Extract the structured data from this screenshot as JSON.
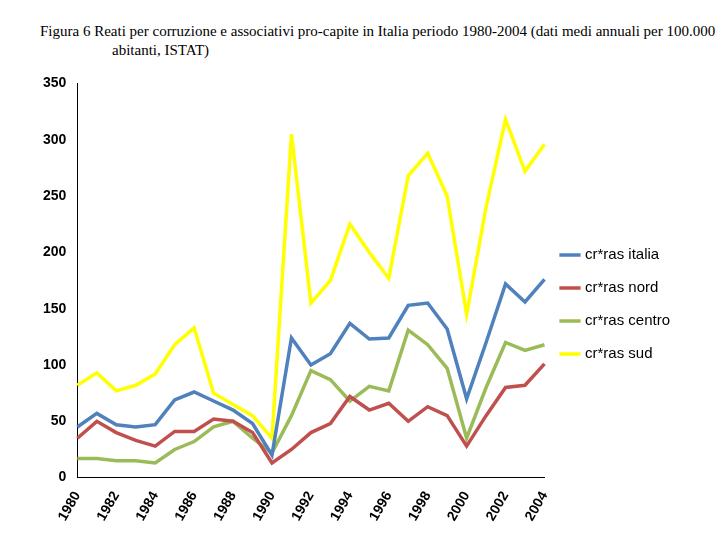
{
  "chart_data": {
    "type": "line",
    "title": "Figura 6  Reati per corruzione e associativi pro-capite in Italia periodo 1980-2004  (dati medi annuali  per 100.000 abitanti, ISTAT)",
    "categories": [
      "1980",
      null,
      "1982",
      null,
      "1984",
      null,
      "1986",
      null,
      "1988",
      null,
      "1990",
      null,
      "1992",
      null,
      "1994",
      null,
      "1996",
      null,
      "1998",
      null,
      "2000",
      null,
      "2002",
      null,
      "2004"
    ],
    "series": [
      {
        "name": "cr*ras italia",
        "color": "#4f81bd",
        "values": [
          45,
          57,
          47,
          45,
          47,
          69,
          76,
          68,
          60,
          48,
          20,
          124,
          100,
          110,
          137,
          123,
          124,
          153,
          155,
          132,
          70,
          120,
          172,
          156,
          176
        ]
      },
      {
        "name": "cr*ras nord",
        "color": "#c0504d",
        "values": [
          35,
          50,
          40,
          33,
          28,
          41,
          41,
          52,
          50,
          40,
          13,
          25,
          40,
          48,
          72,
          60,
          66,
          50,
          63,
          55,
          28,
          55,
          80,
          82,
          101
        ]
      },
      {
        "name": "cr*ras centro",
        "color": "#9bbb59",
        "values": [
          17,
          17,
          15,
          15,
          13,
          25,
          32,
          45,
          50,
          35,
          22,
          55,
          95,
          87,
          68,
          81,
          77,
          131,
          118,
          97,
          35,
          80,
          120,
          113,
          118
        ]
      },
      {
        "name": "cr*ras sud",
        "color": "#ffff00",
        "values": [
          82,
          93,
          77,
          82,
          92,
          118,
          133,
          75,
          65,
          55,
          35,
          305,
          155,
          175,
          225,
          200,
          177,
          268,
          288,
          250,
          145,
          240,
          318,
          272,
          296
        ]
      }
    ],
    "ylim": [
      0,
      350
    ],
    "yticks": [
      0,
      50,
      100,
      150,
      200,
      250,
      300,
      350
    ],
    "grid": false,
    "legend": "right"
  }
}
